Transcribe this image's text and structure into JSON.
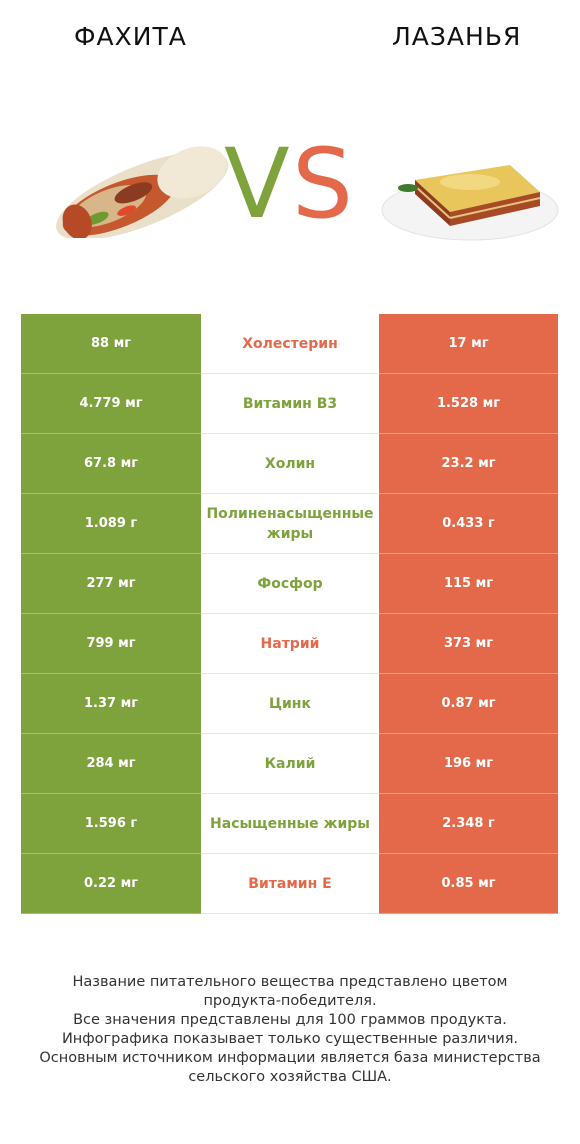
{
  "header": {
    "left_title": "ФАХИТА",
    "right_title": "ЛАЗАНЬЯ",
    "vs_v": "V",
    "vs_s": "S"
  },
  "colors": {
    "left": "#7ea33c",
    "right": "#e3694a"
  },
  "rows": [
    {
      "left": "88 мг",
      "name": "Холестерин",
      "right": "17 мг",
      "winner": "right"
    },
    {
      "left": "4.779 мг",
      "name": "Витамин B3",
      "right": "1.528 мг",
      "winner": "left"
    },
    {
      "left": "67.8 мг",
      "name": "Холин",
      "right": "23.2 мг",
      "winner": "left"
    },
    {
      "left": "1.089 г",
      "name": "Полиненасыщенные жиры",
      "right": "0.433 г",
      "winner": "left"
    },
    {
      "left": "277 мг",
      "name": "Фосфор",
      "right": "115 мг",
      "winner": "left"
    },
    {
      "left": "799 мг",
      "name": "Натрий",
      "right": "373 мг",
      "winner": "right"
    },
    {
      "left": "1.37 мг",
      "name": "Цинк",
      "right": "0.87 мг",
      "winner": "left"
    },
    {
      "left": "284 мг",
      "name": "Калий",
      "right": "196 мг",
      "winner": "left"
    },
    {
      "left": "1.596 г",
      "name": "Насыщенные жиры",
      "right": "2.348 г",
      "winner": "left"
    },
    {
      "left": "0.22 мг",
      "name": "Витамин E",
      "right": "0.85 мг",
      "winner": "right"
    }
  ],
  "footer": {
    "lines": [
      "Название питательного вещества представлено цветом",
      "продукта-победителя.",
      "Все значения представлены для 100 граммов продукта.",
      "Инфографика показывает только существенные различия.",
      "Основным источником информации является база министерства",
      "сельского хозяйства США."
    ]
  }
}
